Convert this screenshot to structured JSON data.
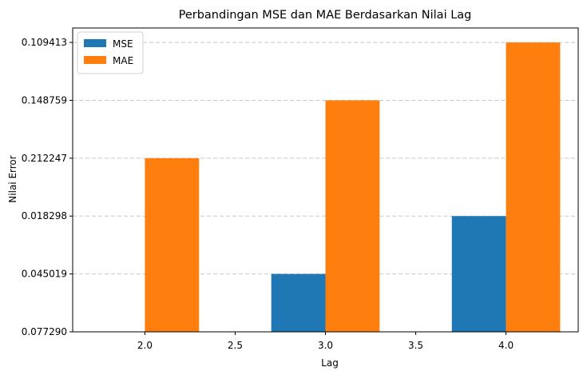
{
  "chart_data": {
    "type": "bar",
    "title": "Perbandingan MSE dan MAE Berdasarkan Nilai Lag",
    "xlabel": "Lag",
    "ylabel": "Nilai Error",
    "x_ticks": [
      "2.0",
      "2.5",
      "3.0",
      "3.5",
      "4.0"
    ],
    "y_ticks": [
      "0.077290",
      "0.045019",
      "0.018298",
      "0.212247",
      "0.148759",
      "0.109413"
    ],
    "xlim": [
      1.6,
      4.4
    ],
    "ylim": [
      0,
      5.25
    ],
    "categories": [
      2.0,
      3.0,
      4.0
    ],
    "series": [
      {
        "name": "MSE",
        "color": "#1f77b4",
        "values": [
          0,
          1,
          2
        ]
      },
      {
        "name": "MAE",
        "color": "#ff7f0e",
        "values": [
          3,
          4,
          5
        ]
      }
    ],
    "bar_width": 0.3,
    "grid": {
      "axis": "y",
      "style": "dashed"
    },
    "legend": "top-left"
  }
}
